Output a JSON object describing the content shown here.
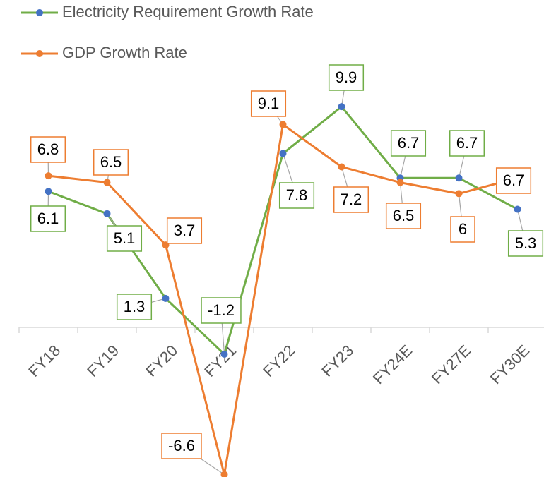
{
  "chart_data": {
    "type": "line",
    "categories": [
      "FY18",
      "FY19",
      "FY20",
      "FY21",
      "FY22",
      "FY23",
      "FY24E",
      "FY27E",
      "FY30E"
    ],
    "series": [
      {
        "name": "Electricity Requirement Growth Rate",
        "color": "#70ad47",
        "marker_color": "#4472c4",
        "values": [
          6.1,
          5.1,
          1.3,
          -1.2,
          7.8,
          9.9,
          6.7,
          6.7,
          5.3
        ]
      },
      {
        "name": "GDP Growth Rate",
        "color": "#ed7d31",
        "marker_color": "#ed7d31",
        "values": [
          6.8,
          6.5,
          3.7,
          -6.6,
          9.1,
          7.2,
          6.5,
          6,
          6.7
        ]
      }
    ],
    "ylim": [
      -7,
      11
    ],
    "legend": "top-left",
    "grid": false
  }
}
